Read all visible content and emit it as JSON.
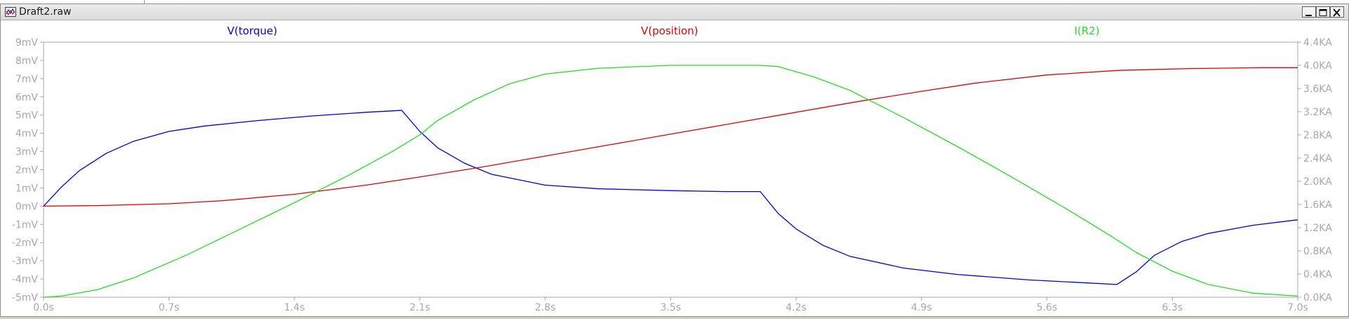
{
  "window": {
    "title": "Draft2.raw"
  },
  "colors": {
    "torque": "#0000dd",
    "position": "#e00000",
    "current": "#22dd22",
    "axis": "#a8a8a8",
    "grid": "#e4e4e4"
  },
  "icons": {
    "app": "waveform-viewer-icon",
    "minimize": "minimize-icon",
    "maximize": "maximize-icon",
    "close": "close-icon"
  },
  "chart_data": {
    "type": "line",
    "x": {
      "label": "",
      "ticks": [
        "0.0s",
        "0.7s",
        "1.4s",
        "2.1s",
        "2.8s",
        "3.5s",
        "4.2s",
        "4.9s",
        "5.6s",
        "6.3s",
        "7.0s"
      ],
      "range": [
        0,
        7.0
      ],
      "unit": "s"
    },
    "y_left": {
      "ticks": [
        "9mV",
        "8mV",
        "7mV",
        "6mV",
        "5mV",
        "4mV",
        "3mV",
        "2mV",
        "1mV",
        "0mV",
        "-1mV",
        "-2mV",
        "-3mV",
        "-4mV",
        "-5mV"
      ],
      "range": [
        -5,
        9
      ],
      "unit": "mV"
    },
    "y_right": {
      "ticks": [
        "4.4KA",
        "4.0KA",
        "3.6KA",
        "3.2KA",
        "2.8KA",
        "2.4KA",
        "2.0KA",
        "1.6KA",
        "1.2KA",
        "0.8KA",
        "0.4KA",
        "0.0KA"
      ],
      "range": [
        0,
        4.4
      ],
      "unit": "KA"
    },
    "grid": false,
    "legend_position": "top",
    "series": [
      {
        "name": "V(torque)",
        "axis": "left",
        "color": "#0000dd",
        "points": [
          [
            0,
            0
          ],
          [
            0.1,
            1.05
          ],
          [
            0.2,
            1.95
          ],
          [
            0.35,
            2.9
          ],
          [
            0.5,
            3.55
          ],
          [
            0.7,
            4.1
          ],
          [
            0.9,
            4.4
          ],
          [
            1.2,
            4.7
          ],
          [
            1.5,
            4.95
          ],
          [
            1.8,
            5.15
          ],
          [
            1.99,
            5.25
          ],
          [
            2.0,
            5.25
          ],
          [
            2.1,
            4.1
          ],
          [
            2.2,
            3.2
          ],
          [
            2.35,
            2.35
          ],
          [
            2.5,
            1.75
          ],
          [
            2.8,
            1.15
          ],
          [
            3.1,
            0.95
          ],
          [
            3.5,
            0.85
          ],
          [
            3.8,
            0.8
          ],
          [
            3.99,
            0.8
          ],
          [
            4.0,
            0.8
          ],
          [
            4.1,
            -0.4
          ],
          [
            4.2,
            -1.25
          ],
          [
            4.35,
            -2.15
          ],
          [
            4.5,
            -2.75
          ],
          [
            4.8,
            -3.4
          ],
          [
            5.1,
            -3.75
          ],
          [
            5.5,
            -4.05
          ],
          [
            5.8,
            -4.2
          ],
          [
            5.99,
            -4.3
          ],
          [
            6.1,
            -3.6
          ],
          [
            6.2,
            -2.7
          ],
          [
            6.35,
            -1.95
          ],
          [
            6.5,
            -1.5
          ],
          [
            6.75,
            -1.05
          ],
          [
            7.0,
            -0.75
          ]
        ]
      },
      {
        "name": "V(position)",
        "axis": "left",
        "color": "#e00000",
        "points": [
          [
            0,
            0
          ],
          [
            0.3,
            0.03
          ],
          [
            0.7,
            0.13
          ],
          [
            1.0,
            0.3
          ],
          [
            1.4,
            0.65
          ],
          [
            1.8,
            1.15
          ],
          [
            2.1,
            1.6
          ],
          [
            2.45,
            2.15
          ],
          [
            2.8,
            2.75
          ],
          [
            3.15,
            3.35
          ],
          [
            3.5,
            3.95
          ],
          [
            3.85,
            4.55
          ],
          [
            4.2,
            5.15
          ],
          [
            4.55,
            5.75
          ],
          [
            4.9,
            6.3
          ],
          [
            5.2,
            6.75
          ],
          [
            5.6,
            7.2
          ],
          [
            6.0,
            7.45
          ],
          [
            6.4,
            7.55
          ],
          [
            6.8,
            7.6
          ],
          [
            7.0,
            7.6
          ]
        ]
      },
      {
        "name": "I(R2)",
        "axis": "right",
        "color": "#22dd22",
        "points": [
          [
            0,
            0
          ],
          [
            0.1,
            0.02
          ],
          [
            0.3,
            0.13
          ],
          [
            0.5,
            0.33
          ],
          [
            0.8,
            0.73
          ],
          [
            1.1,
            1.18
          ],
          [
            1.4,
            1.63
          ],
          [
            1.7,
            2.1
          ],
          [
            1.95,
            2.52
          ],
          [
            2.1,
            2.8
          ],
          [
            2.2,
            3.05
          ],
          [
            2.4,
            3.4
          ],
          [
            2.6,
            3.68
          ],
          [
            2.8,
            3.85
          ],
          [
            3.1,
            3.95
          ],
          [
            3.5,
            4.0
          ],
          [
            4.0,
            4.0
          ],
          [
            4.1,
            3.98
          ],
          [
            4.3,
            3.8
          ],
          [
            4.5,
            3.57
          ],
          [
            4.8,
            3.1
          ],
          [
            5.1,
            2.6
          ],
          [
            5.4,
            2.08
          ],
          [
            5.7,
            1.54
          ],
          [
            5.95,
            1.07
          ],
          [
            6.1,
            0.77
          ],
          [
            6.3,
            0.45
          ],
          [
            6.5,
            0.22
          ],
          [
            6.75,
            0.07
          ],
          [
            7.0,
            0.02
          ]
        ]
      }
    ]
  }
}
